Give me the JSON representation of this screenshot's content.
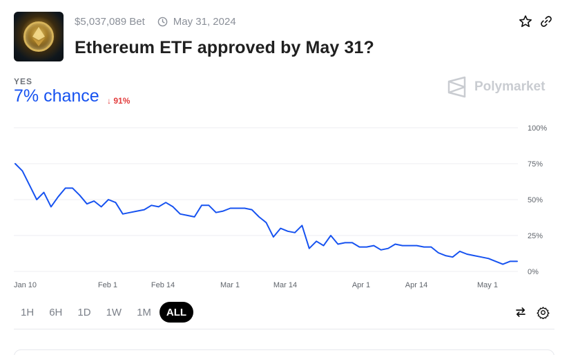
{
  "market": {
    "volume": "$5,037,089 Bet",
    "end_date": "May 31, 2024",
    "title": "Ethereum ETF approved by May 31?",
    "outcome_label": "YES",
    "chance": "7% chance",
    "change": "91%",
    "change_direction": "down",
    "thumbnail_icon": "ethereum-coin-icon"
  },
  "header_icons": {
    "favorite": "star-icon",
    "share": "link-icon"
  },
  "watermark": "Polymarket",
  "chart_data": {
    "type": "line",
    "xlabels": [
      "Jan 10",
      "Feb 1",
      "Feb 14",
      "Mar 1",
      "Mar 14",
      "Apr 1",
      "Apr 14",
      "May 1"
    ],
    "ylabels": [
      "100%",
      "75%",
      "50%",
      "25%",
      "0%"
    ],
    "ylim": [
      0,
      100
    ],
    "grid": true,
    "line_color": "#1652f0",
    "series": [
      {
        "values": [
          75,
          70,
          60,
          50,
          55,
          45,
          52,
          58,
          58,
          53,
          47,
          49,
          45,
          50,
          48,
          40,
          41,
          42,
          43,
          46,
          45,
          48,
          45,
          40,
          39,
          38,
          46,
          46,
          41,
          42,
          44,
          44,
          44,
          43,
          38,
          34,
          24,
          30,
          28,
          27,
          32,
          16,
          21,
          18,
          25,
          19,
          20,
          20,
          17,
          17,
          18,
          15,
          16,
          19,
          18,
          18,
          18,
          17,
          17,
          13,
          11,
          10,
          14,
          12,
          11,
          10,
          9,
          7,
          5,
          7,
          7
        ]
      }
    ]
  },
  "range_buttons": [
    {
      "label": "1H"
    },
    {
      "label": "6H"
    },
    {
      "label": "1D"
    },
    {
      "label": "1W"
    },
    {
      "label": "1M"
    },
    {
      "label": "ALL"
    }
  ],
  "active_range": "ALL",
  "tools": {
    "swap": "swap-arrows-icon",
    "settings": "gear-icon"
  }
}
